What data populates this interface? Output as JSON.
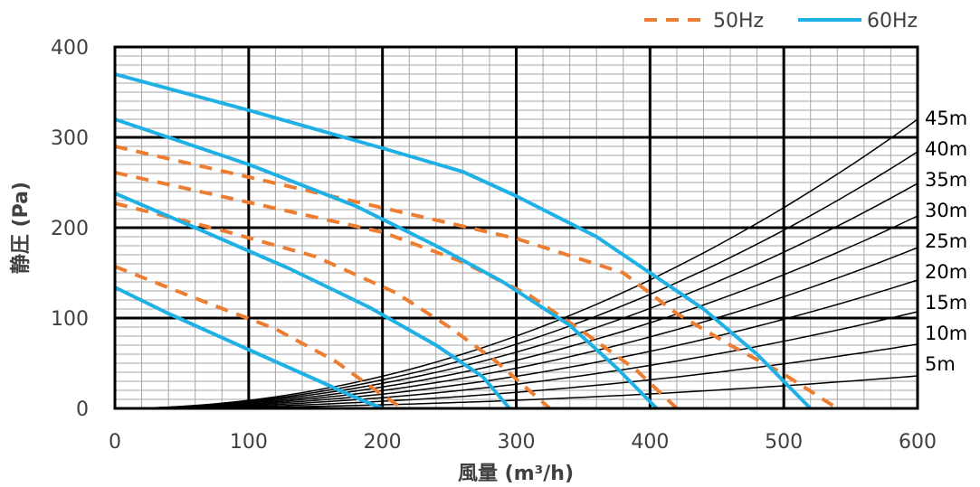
{
  "chart_data": {
    "type": "line",
    "xlabel": "風量 (m³/h)",
    "ylabel": "静圧 (Pa)",
    "xlim": [
      0,
      600
    ],
    "ylim": [
      0,
      400
    ],
    "x_ticks": [
      "0",
      "100",
      "200",
      "300",
      "400",
      "500",
      "600"
    ],
    "y_ticks": [
      "0",
      "100",
      "200",
      "300",
      "400"
    ],
    "grid": true,
    "legend_position": "top-right",
    "legend": [
      {
        "label": "50Hz",
        "color": "#ED7D31",
        "style": "dashed"
      },
      {
        "label": "60Hz",
        "color": "#1FB1E6",
        "style": "solid"
      }
    ],
    "fan_curves": [
      {
        "legend": "50Hz",
        "points": [
          [
            0,
            290
          ],
          [
            100,
            256
          ],
          [
            200,
            222
          ],
          [
            300,
            188
          ],
          [
            380,
            150
          ],
          [
            420,
            105
          ],
          [
            460,
            70
          ],
          [
            500,
            38
          ],
          [
            540,
            0
          ]
        ]
      },
      {
        "legend": "50Hz",
        "points": [
          [
            0,
            261
          ],
          [
            100,
            228
          ],
          [
            200,
            195
          ],
          [
            260,
            162
          ],
          [
            310,
            125
          ],
          [
            350,
            85
          ],
          [
            390,
            42
          ],
          [
            420,
            0
          ]
        ]
      },
      {
        "legend": "50Hz",
        "points": [
          [
            0,
            227
          ],
          [
            80,
            197
          ],
          [
            150,
            168
          ],
          [
            210,
            128
          ],
          [
            250,
            90
          ],
          [
            285,
            52
          ],
          [
            325,
            0
          ]
        ]
      },
      {
        "legend": "50Hz",
        "points": [
          [
            0,
            157
          ],
          [
            60,
            122
          ],
          [
            120,
            88
          ],
          [
            165,
            52
          ],
          [
            195,
            20
          ],
          [
            215,
            0
          ]
        ]
      },
      {
        "legend": "60Hz",
        "points": [
          [
            0,
            370
          ],
          [
            100,
            330
          ],
          [
            200,
            288
          ],
          [
            260,
            262
          ],
          [
            300,
            235
          ],
          [
            360,
            190
          ],
          [
            400,
            150
          ],
          [
            440,
            110
          ],
          [
            480,
            60
          ],
          [
            520,
            0
          ]
        ]
      },
      {
        "legend": "60Hz",
        "points": [
          [
            0,
            320
          ],
          [
            100,
            270
          ],
          [
            180,
            224
          ],
          [
            240,
            180
          ],
          [
            290,
            140
          ],
          [
            340,
            92
          ],
          [
            375,
            45
          ],
          [
            405,
            0
          ]
        ]
      },
      {
        "legend": "60Hz",
        "points": [
          [
            0,
            238
          ],
          [
            60,
            200
          ],
          [
            130,
            155
          ],
          [
            190,
            112
          ],
          [
            240,
            70
          ],
          [
            275,
            35
          ],
          [
            295,
            0
          ]
        ]
      },
      {
        "legend": "60Hz",
        "points": [
          [
            0,
            134
          ],
          [
            40,
            105
          ],
          [
            100,
            65
          ],
          [
            150,
            32
          ],
          [
            180,
            12
          ],
          [
            200,
            0
          ]
        ]
      }
    ],
    "duct_curves": [
      {
        "label": "45m",
        "y_at_600": 320
      },
      {
        "label": "40m",
        "y_at_600": 284
      },
      {
        "label": "35m",
        "y_at_600": 249
      },
      {
        "label": "30m",
        "y_at_600": 213
      },
      {
        "label": "25m",
        "y_at_600": 178
      },
      {
        "label": "20m",
        "y_at_600": 142
      },
      {
        "label": "15m",
        "y_at_600": 107
      },
      {
        "label": "10m",
        "y_at_600": 71
      },
      {
        "label": "5m",
        "y_at_600": 36
      }
    ]
  }
}
